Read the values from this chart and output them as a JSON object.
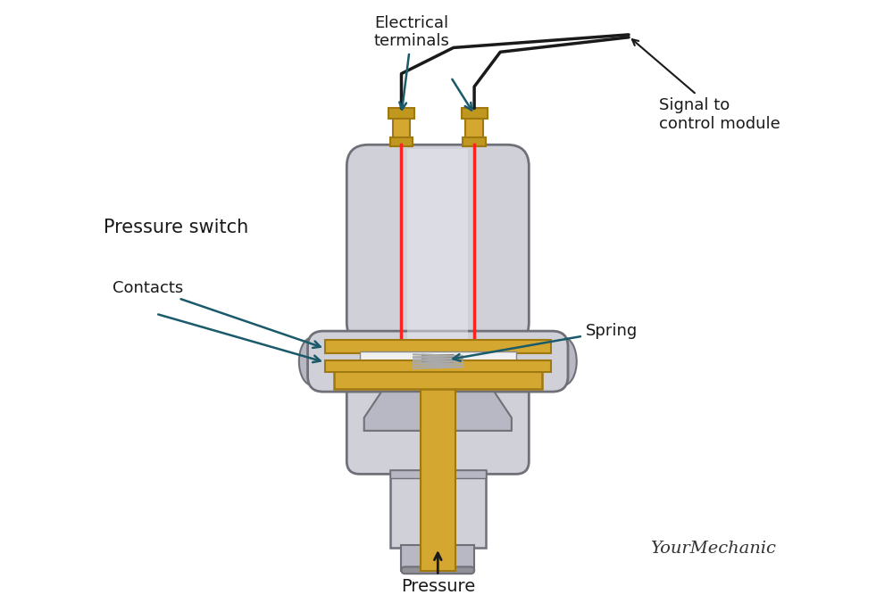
{
  "bg_color": "#ffffff",
  "silver_light": "#d0d0d8",
  "silver_mid": "#b8b8c4",
  "silver_dark": "#909098",
  "silver_edge": "#707078",
  "gold_light": "#d4a830",
  "gold_mid": "#c09820",
  "gold_dark": "#a07810",
  "red_wire": "#ff2020",
  "black_wire": "#1a1a1a",
  "teal_arrow": "#1a5a6a",
  "text_color": "#1a1a1a",
  "label_fontsize": 13,
  "title_fontsize": 15,
  "watermark_fontsize": 14,
  "labels": {
    "electrical_terminals": "Electrical\nterminals",
    "pressure_switch": "Pressure switch",
    "contacts": "Contacts",
    "spring": "Spring",
    "pressure": "Pressure",
    "signal": "Signal to\ncontrol module"
  }
}
